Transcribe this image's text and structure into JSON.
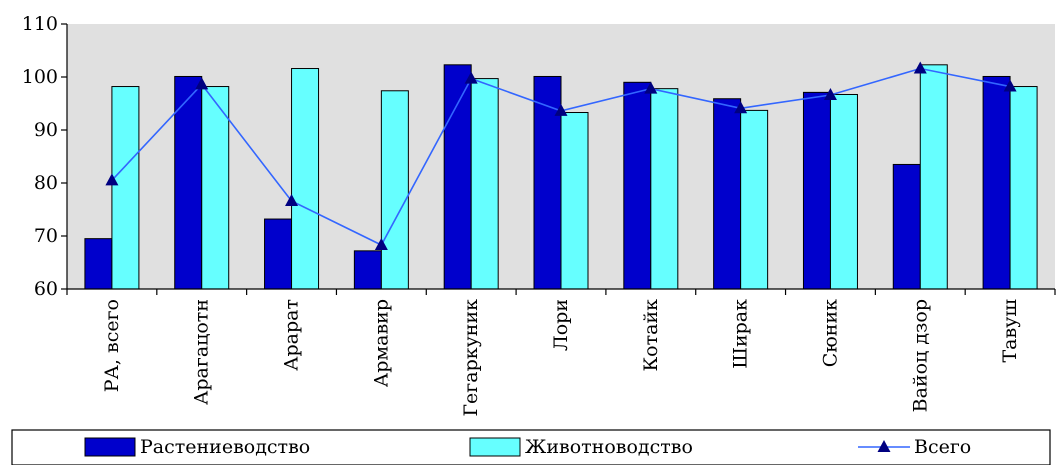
{
  "chart_data": {
    "type": "bar",
    "categories": [
      "РА, всего",
      "Арагацотн",
      "Арарат",
      "Армавир",
      "Гегаркуник",
      "Лори",
      "Котайк",
      "Ширак",
      "Сюник",
      "Вайоц дзор",
      "Тавуш"
    ],
    "series": [
      {
        "name": "Растениеводство",
        "kind": "bar",
        "color": "#0000CC",
        "values": [
          69.5,
          100.1,
          73.2,
          67.2,
          102.3,
          100.1,
          99.0,
          95.9,
          97.1,
          83.5,
          100.1
        ]
      },
      {
        "name": "Животноводство",
        "kind": "bar",
        "color": "#66FFFF",
        "values": [
          98.2,
          98.2,
          101.6,
          97.4,
          99.7,
          93.3,
          97.8,
          93.7,
          96.7,
          102.3,
          98.2
        ]
      },
      {
        "name": "Всего",
        "kind": "line",
        "color": "#3366FF",
        "values": [
          80.5,
          98.6,
          76.6,
          68.3,
          99.7,
          93.6,
          97.8,
          94.1,
          96.6,
          101.6,
          98.2
        ]
      }
    ],
    "ylim": [
      60,
      110
    ],
    "yticks": [
      60,
      70,
      80,
      90,
      100,
      110
    ],
    "ytick_labels": [
      "60",
      "70",
      "80",
      "90",
      "100",
      "110"
    ],
    "title": "",
    "xlabel": "",
    "ylabel": "",
    "grid": false,
    "legend": "bottom",
    "plot_background": "#E0E0E0"
  }
}
